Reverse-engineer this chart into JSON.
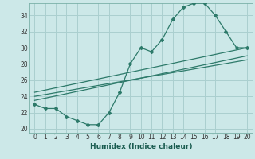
{
  "title": "",
  "xlabel": "Humidex (Indice chaleur)",
  "bg_color": "#cce8e8",
  "line_color": "#2d7a6a",
  "grid_color": "#aacfcf",
  "xlim": [
    -0.5,
    20.5
  ],
  "ylim": [
    19.5,
    35.5
  ],
  "xticks": [
    0,
    1,
    2,
    3,
    4,
    5,
    6,
    7,
    8,
    9,
    10,
    11,
    12,
    13,
    14,
    15,
    16,
    17,
    18,
    19,
    20
  ],
  "yticks": [
    20,
    22,
    24,
    26,
    28,
    30,
    32,
    34
  ],
  "main_x": [
    0,
    1,
    2,
    3,
    4,
    5,
    6,
    7,
    8,
    9,
    10,
    11,
    12,
    13,
    14,
    15,
    16,
    17,
    18,
    19,
    20
  ],
  "main_y": [
    23.0,
    22.5,
    22.5,
    21.5,
    21.0,
    20.5,
    20.5,
    22.0,
    24.5,
    28.0,
    30.0,
    29.5,
    31.0,
    33.5,
    35.0,
    35.5,
    35.5,
    34.0,
    32.0,
    30.0,
    30.0
  ],
  "line1_x": [
    0,
    20
  ],
  "line1_y": [
    23.5,
    29.0
  ],
  "line2_x": [
    0,
    20
  ],
  "line2_y": [
    24.0,
    28.5
  ],
  "line3_x": [
    0,
    20
  ],
  "line3_y": [
    24.5,
    30.0
  ]
}
